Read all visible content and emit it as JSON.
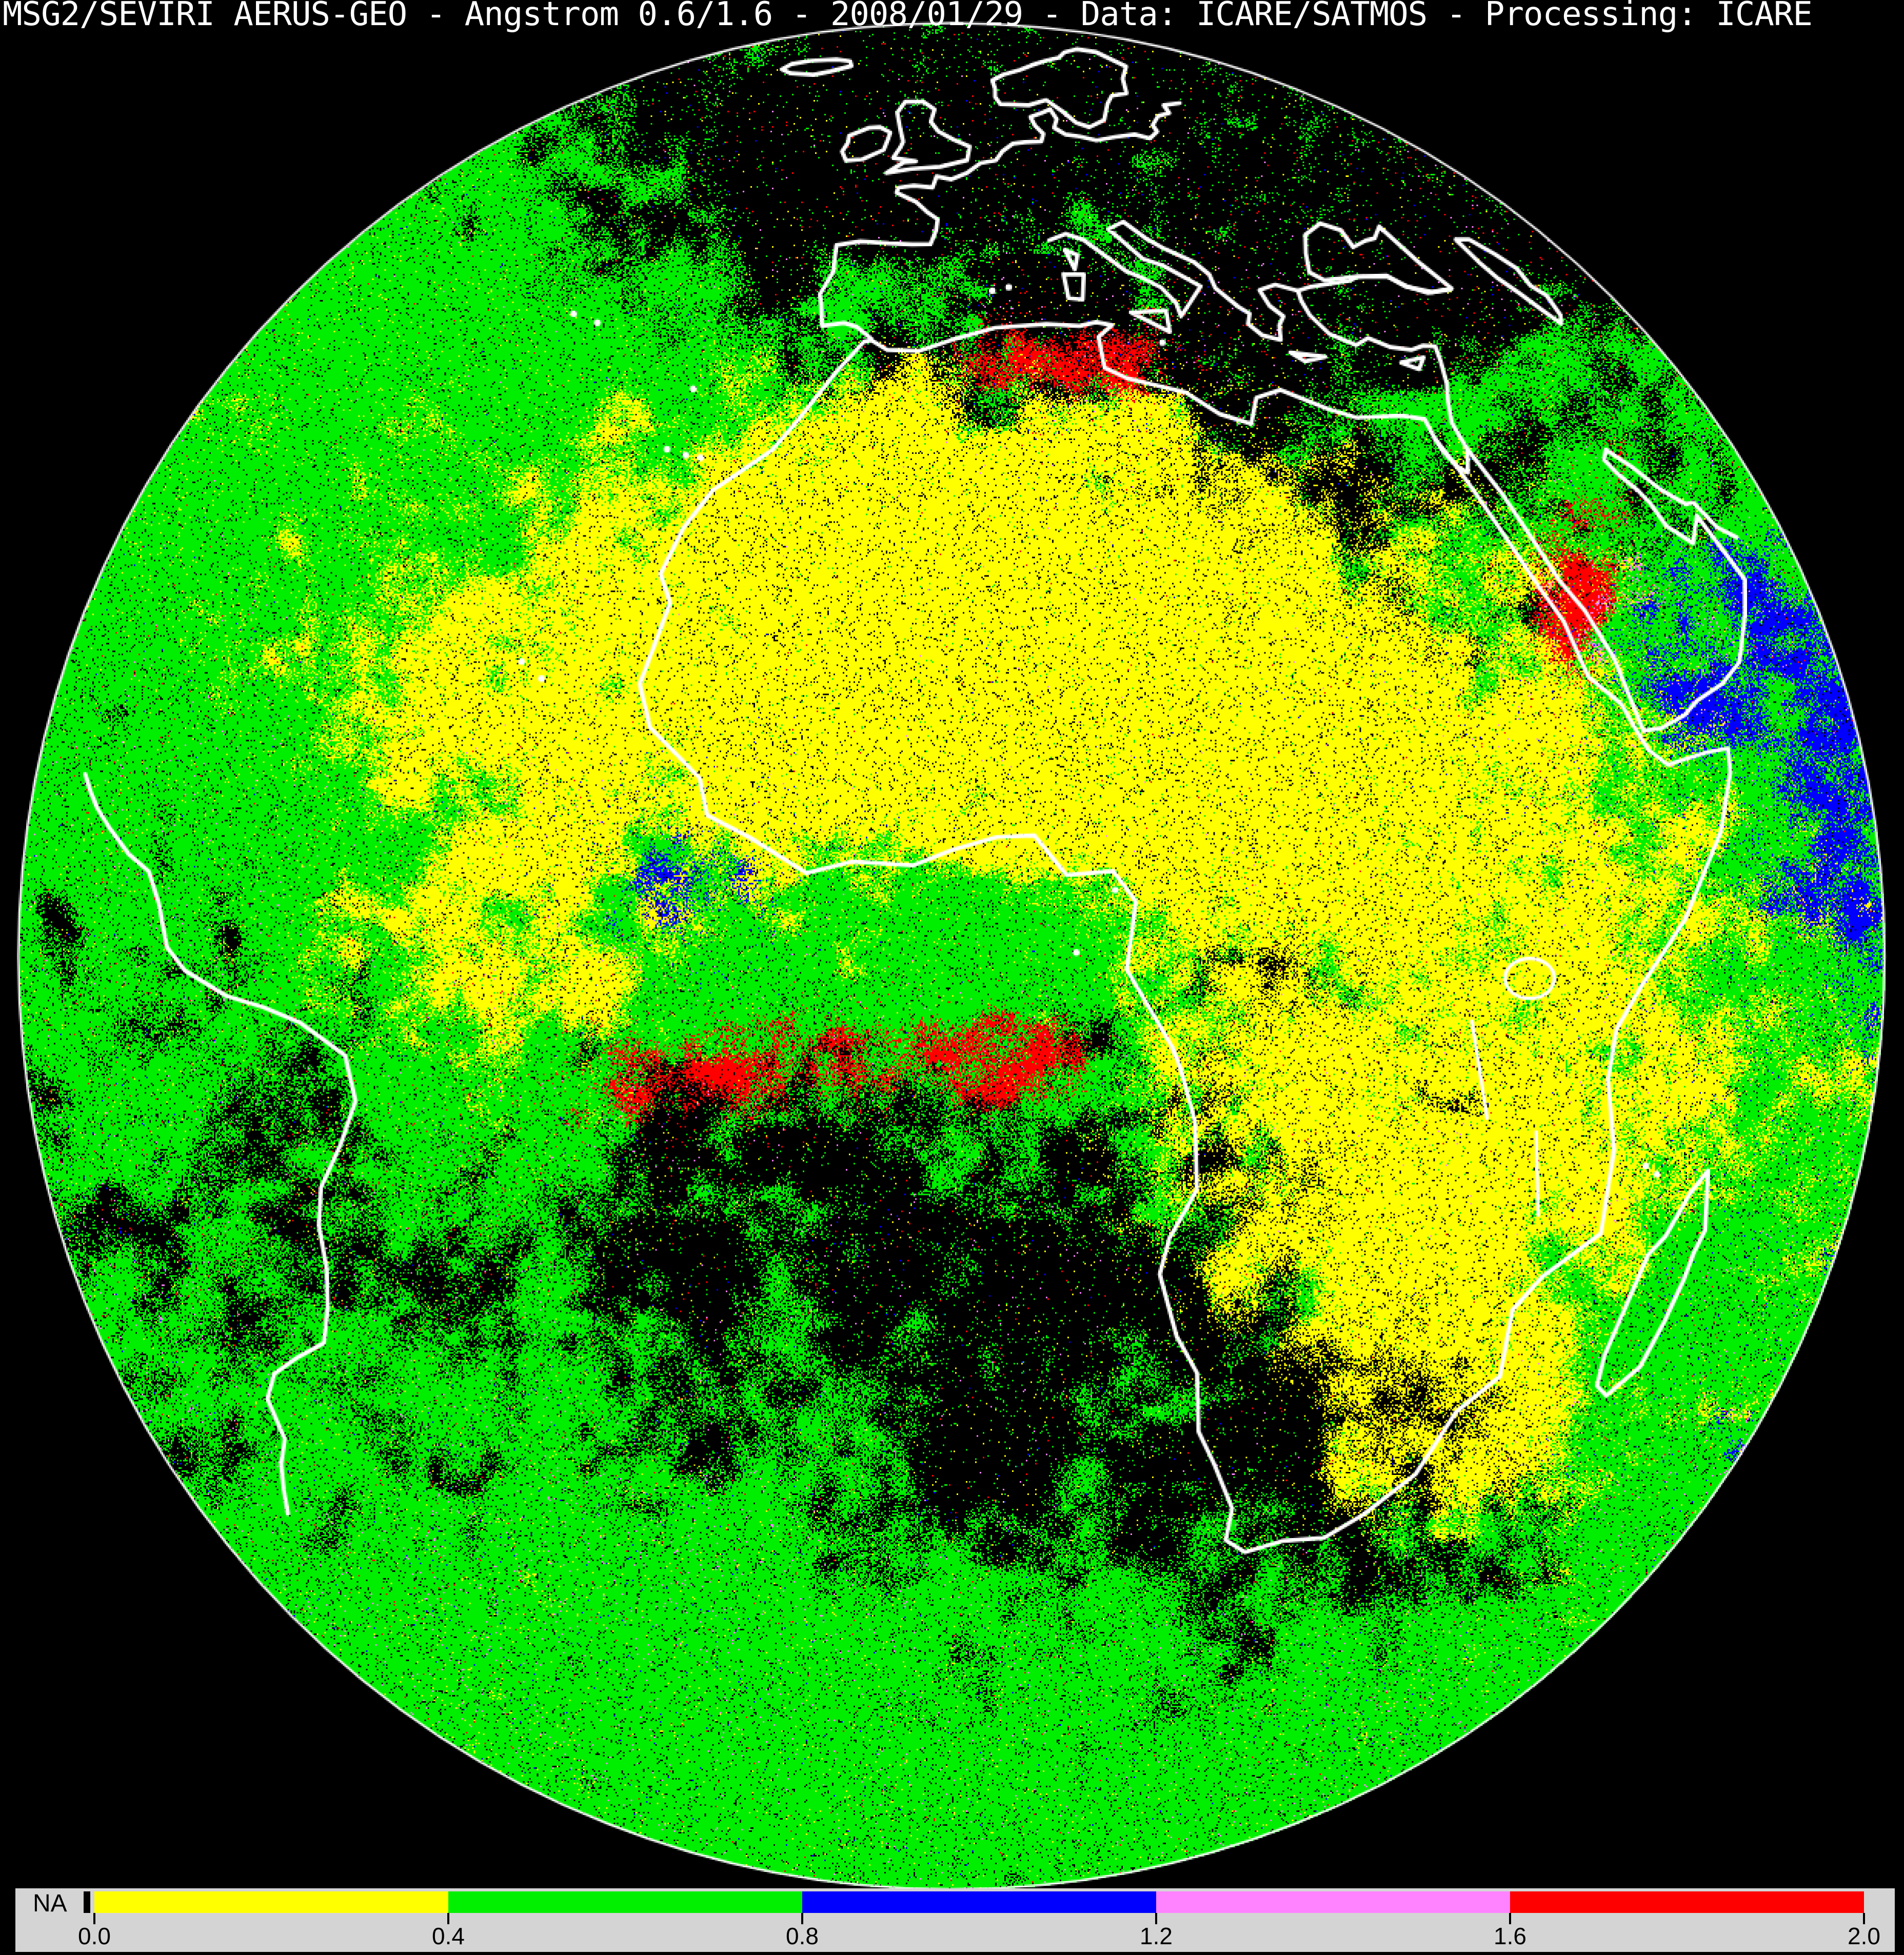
{
  "title": "MSG2/SEVIRI AERUS-GEO - Angstrom 0.6/1.6 - 2008/01/29 - Data: ICARE/SATMOS - Processing: ICARE",
  "colorbar": {
    "na_label": "NA",
    "na_color": "#000000",
    "panel_bg": "#d4d4d4",
    "tick_labels": [
      "0.0",
      "0.4",
      "0.8",
      "1.2",
      "1.6",
      "2.0"
    ],
    "value_min": 0.0,
    "value_max": 2.0,
    "segments": [
      {
        "from": 0.0,
        "to": 0.4,
        "color": "#ffff00"
      },
      {
        "from": 0.4,
        "to": 0.8,
        "color": "#00f000"
      },
      {
        "from": 0.8,
        "to": 1.2,
        "color": "#0000ff"
      },
      {
        "from": 1.2,
        "to": 1.6,
        "color": "#ff82ff"
      },
      {
        "from": 1.6,
        "to": 2.0,
        "color": "#ff0000"
      }
    ]
  },
  "map": {
    "palette": {
      "yellow": "#ffff00",
      "green": "#00ee00",
      "blue": "#0000ff",
      "magenta": "#ff82ff",
      "red": "#ff0000",
      "no_data": "#000000",
      "coastline": "#ffffff",
      "space": "#000000"
    }
  }
}
